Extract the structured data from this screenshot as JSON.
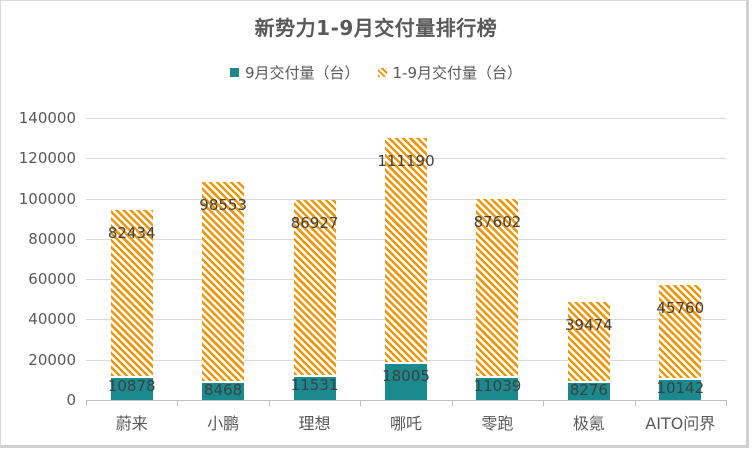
{
  "chart_data": {
    "type": "bar",
    "stacked": true,
    "title": "新势力1-9月交付量排行榜",
    "xlabel": "",
    "ylabel": "",
    "categories": [
      "蔚来",
      "小鹏",
      "理想",
      "哪吒",
      "零跑",
      "极氪",
      "AITO问界"
    ],
    "series": [
      {
        "name": "9月交付量（台）",
        "color": "#1a8a8f",
        "pattern": "solid",
        "values": [
          10878,
          8468,
          11531,
          18005,
          11039,
          8276,
          10142
        ]
      },
      {
        "name": "1-9月交付量（台）",
        "color": "#f0960a",
        "pattern": "diagonal-hatch",
        "values": [
          82434,
          98553,
          86927,
          111190,
          87602,
          39474,
          45760
        ]
      }
    ],
    "ylim": [
      0,
      140000
    ],
    "yticks": [
      0,
      20000,
      40000,
      60000,
      80000,
      100000,
      120000,
      140000
    ],
    "ytick_labels": [
      "0",
      "20000",
      "40000",
      "60000",
      "80000",
      "100000",
      "120000",
      "140000"
    ],
    "grid": true,
    "legend_position": "top",
    "data_labels": true
  }
}
